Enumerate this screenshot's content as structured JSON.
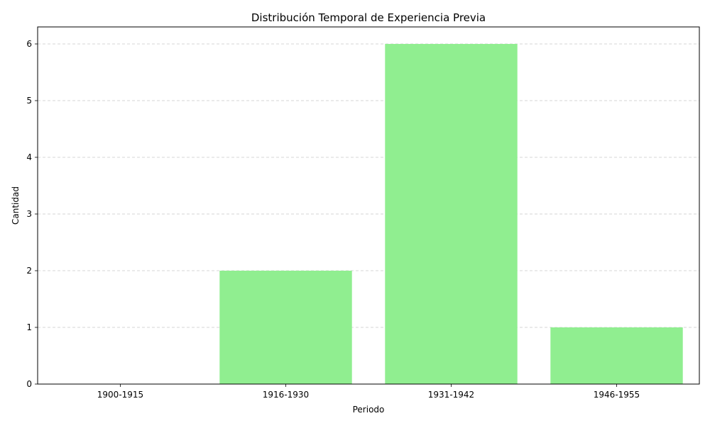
{
  "chart_data": {
    "type": "bar",
    "title": "Distribución Temporal de Experiencia Previa",
    "xlabel": "Periodo",
    "ylabel": "Cantidad",
    "categories": [
      "1900-1915",
      "1916-1930",
      "1931-1942",
      "1946-1955"
    ],
    "values": [
      0,
      2,
      6,
      1
    ],
    "ylim": [
      0,
      6.3
    ],
    "yticks": [
      0,
      1,
      2,
      3,
      4,
      5,
      6
    ],
    "grid": "y-dashed",
    "bar_color": "#90ee90",
    "grid_color": "#c8c8c8"
  }
}
